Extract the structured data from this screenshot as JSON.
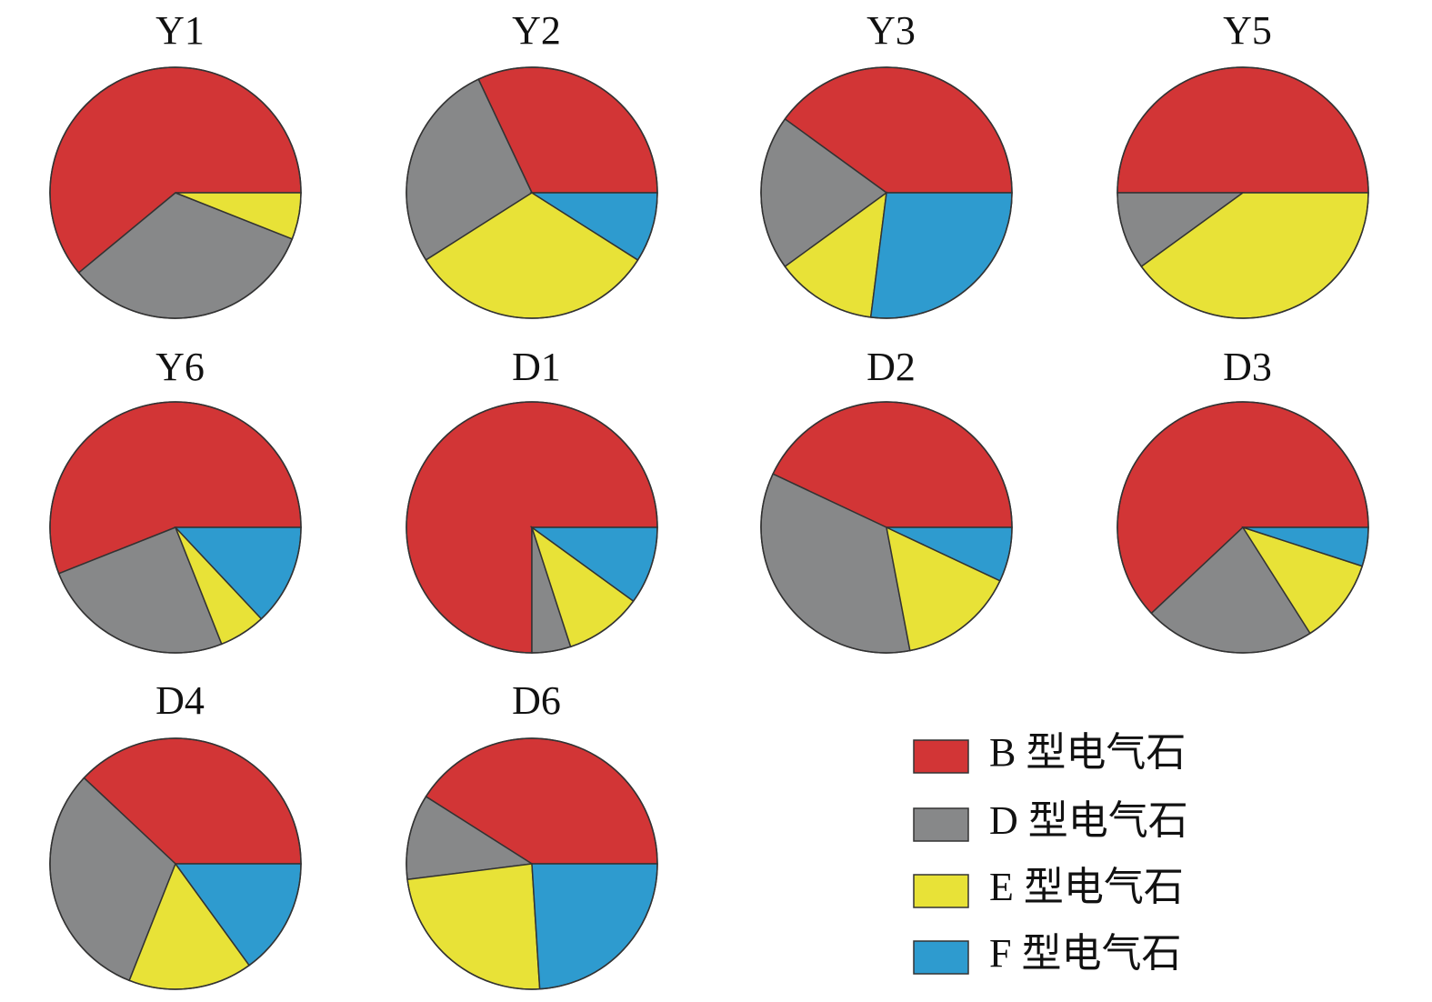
{
  "chart_data": [
    {
      "type": "pie",
      "title": "Y1",
      "categories": [
        "B 型电气石",
        "D 型电气石",
        "E 型电气石",
        "F 型电气石"
      ],
      "colors": [
        "#d23536",
        "#878889",
        "#e8e237",
        "#2e9bcf"
      ],
      "values": [
        61,
        33,
        6,
        0
      ]
    },
    {
      "type": "pie",
      "title": "Y2",
      "categories": [
        "B 型电气石",
        "D 型电气石",
        "E 型电气石",
        "F 型电气石"
      ],
      "colors": [
        "#d23536",
        "#878889",
        "#e8e237",
        "#2e9bcf"
      ],
      "values": [
        32,
        27,
        32,
        9
      ]
    },
    {
      "type": "pie",
      "title": "Y3",
      "categories": [
        "B 型电气石",
        "D 型电气石",
        "E 型电气石",
        "F 型电气石"
      ],
      "colors": [
        "#d23536",
        "#878889",
        "#e8e237",
        "#2e9bcf"
      ],
      "values": [
        40,
        20,
        13,
        27
      ]
    },
    {
      "type": "pie",
      "title": "Y5",
      "categories": [
        "B 型电气石",
        "D 型电气石",
        "E 型电气石",
        "F 型电气石"
      ],
      "colors": [
        "#d23536",
        "#878889",
        "#e8e237",
        "#2e9bcf"
      ],
      "values": [
        50,
        10,
        40,
        0
      ]
    },
    {
      "type": "pie",
      "title": "Y6",
      "categories": [
        "B 型电气石",
        "D 型电气石",
        "E 型电气石",
        "F 型电气石"
      ],
      "colors": [
        "#d23536",
        "#878889",
        "#e8e237",
        "#2e9bcf"
      ],
      "values": [
        56,
        25,
        6,
        13
      ]
    },
    {
      "type": "pie",
      "title": "D1",
      "categories": [
        "B 型电气石",
        "D 型电气石",
        "E 型电气石",
        "F 型电气石"
      ],
      "colors": [
        "#d23536",
        "#878889",
        "#e8e237",
        "#2e9bcf"
      ],
      "values": [
        75,
        5,
        10,
        10
      ]
    },
    {
      "type": "pie",
      "title": "D2",
      "categories": [
        "B 型电气石",
        "D 型电气石",
        "E 型电气石",
        "F 型电气石"
      ],
      "colors": [
        "#d23536",
        "#878889",
        "#e8e237",
        "#2e9bcf"
      ],
      "values": [
        43,
        35,
        15,
        7
      ]
    },
    {
      "type": "pie",
      "title": "D3",
      "categories": [
        "B 型电气石",
        "D 型电气石",
        "E 型电气石",
        "F 型电气石"
      ],
      "colors": [
        "#d23536",
        "#878889",
        "#e8e237",
        "#2e9bcf"
      ],
      "values": [
        62,
        22,
        11,
        5
      ]
    },
    {
      "type": "pie",
      "title": "D4",
      "categories": [
        "B 型电气石",
        "D 型电气石",
        "E 型电气石",
        "F 型电气石"
      ],
      "colors": [
        "#d23536",
        "#878889",
        "#e8e237",
        "#2e9bcf"
      ],
      "values": [
        38,
        31,
        16,
        15
      ]
    },
    {
      "type": "pie",
      "title": "D6",
      "categories": [
        "B 型电气石",
        "D 型电气石",
        "E 型电气石",
        "F 型电气石"
      ],
      "colors": [
        "#d23536",
        "#878889",
        "#e8e237",
        "#2e9bcf"
      ],
      "values": [
        41,
        11,
        24,
        24
      ]
    }
  ]
}
